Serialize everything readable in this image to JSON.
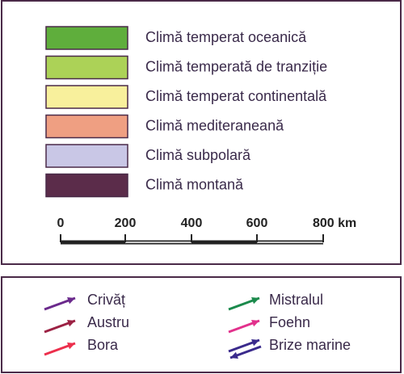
{
  "legend": {
    "climates": [
      {
        "label": "Climă temperat oceanică",
        "color": "#5fae3c"
      },
      {
        "label": "Climă temperată de tranziție",
        "color": "#acd257"
      },
      {
        "label": "Climă temperat continentală",
        "color": "#f8f09c"
      },
      {
        "label": "Climă mediteraneană",
        "color": "#ef9f82"
      },
      {
        "label": "Climă subpolară",
        "color": "#c9c7e6"
      },
      {
        "label": "Climă montană",
        "color": "#5b2c4a"
      }
    ],
    "scale": {
      "ticks": [
        "0",
        "200",
        "400",
        "600",
        "800 km"
      ]
    },
    "winds": [
      {
        "label": "Crivăț",
        "color": "#6b2a8c"
      },
      {
        "label": "Austru",
        "color": "#9c2244"
      },
      {
        "label": "Bora",
        "color": "#ec2f4c"
      },
      {
        "label": "Mistralul",
        "color": "#1b8a4c"
      },
      {
        "label": "Foehn",
        "color": "#e2318c"
      },
      {
        "label": "Brize marine",
        "color": "#3a2a8c"
      }
    ]
  }
}
